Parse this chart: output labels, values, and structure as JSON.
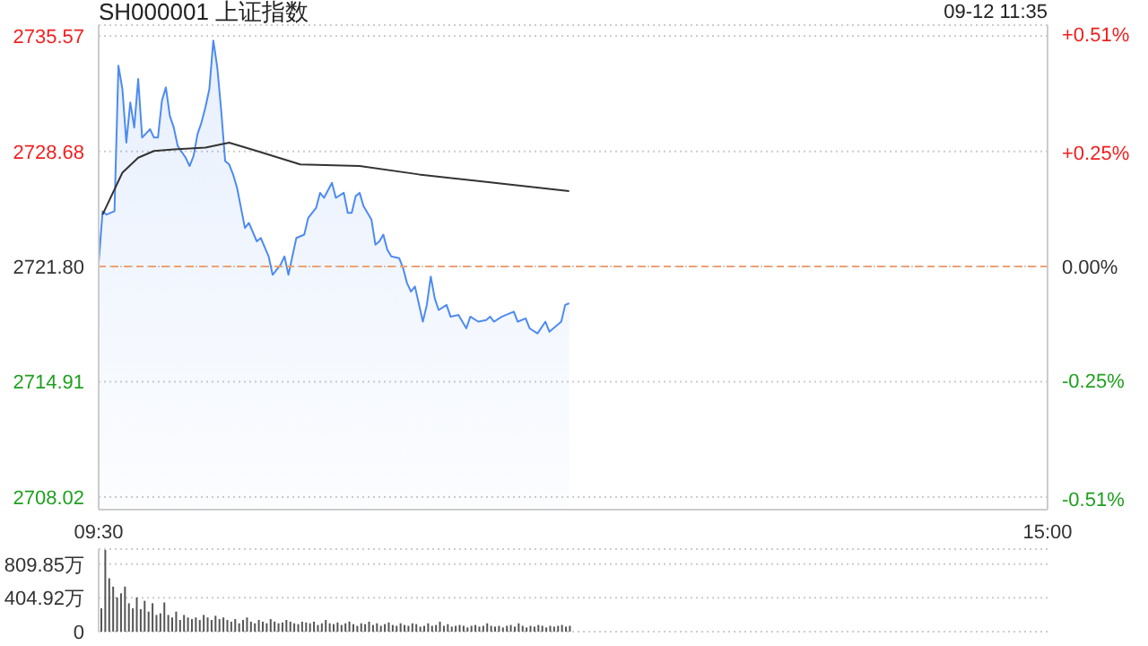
{
  "chart_data": [
    {
      "type": "line",
      "title": "SH000001 上证指数",
      "annotations": [
        "09-12 11:35"
      ],
      "categories": [
        "09:30",
        null,
        null,
        null,
        null,
        null,
        null,
        null,
        null,
        null,
        null,
        null,
        null,
        null,
        null,
        null,
        null,
        null,
        null,
        null,
        null,
        null,
        null,
        null,
        null,
        null,
        null,
        null,
        null,
        null,
        null,
        null,
        null,
        null,
        null,
        null,
        null,
        null,
        null,
        null,
        null,
        null,
        null,
        null,
        null,
        null,
        null,
        null,
        null,
        null,
        null,
        null,
        null,
        null,
        null,
        null,
        null,
        null,
        null,
        null,
        null,
        null,
        null,
        null,
        null,
        null,
        null,
        null,
        null,
        null,
        null,
        null,
        null,
        null,
        null,
        null,
        null,
        null,
        null,
        null,
        null,
        null,
        null,
        null,
        null,
        null,
        null,
        null,
        null,
        null,
        null,
        null,
        null,
        null,
        null,
        null,
        null,
        null,
        null,
        null,
        null,
        null,
        null,
        null,
        null,
        null,
        null,
        null,
        null,
        null,
        null,
        null,
        null,
        null,
        null,
        null,
        null,
        null,
        null,
        null,
        null,
        null,
        null,
        null,
        null,
        null,
        null,
        null,
        null,
        null,
        null,
        null,
        null,
        null,
        null,
        null,
        null,
        null,
        null,
        null,
        null,
        null,
        null,
        null,
        null,
        null,
        null,
        null,
        null,
        null,
        null,
        null,
        null,
        null,
        null,
        null,
        null,
        null,
        null,
        null,
        null,
        null,
        null,
        null,
        null,
        null,
        null,
        null,
        null,
        null,
        null,
        null,
        null,
        null,
        null,
        null,
        null,
        null,
        null,
        null,
        null,
        null,
        null,
        null,
        null,
        null,
        null,
        null,
        null,
        null,
        null,
        null,
        null,
        null,
        null,
        null,
        null,
        null,
        null,
        null,
        null,
        null,
        null,
        null,
        null,
        null,
        null,
        null,
        null,
        null,
        null,
        null,
        null,
        null,
        null,
        null,
        null,
        null,
        null,
        null,
        null,
        null,
        null,
        null,
        null,
        null,
        null,
        null,
        null,
        null,
        null,
        null,
        null,
        null,
        null,
        null,
        null,
        null,
        null,
        null,
        "15:00"
      ],
      "ylim": [
        2707.27,
        2736.22
      ],
      "yticks": [
        2708.02,
        2714.91,
        {
          "value": 2721.8,
          "label": "2721.80"
        },
        2728.68,
        2735.57
      ],
      "y2lim": [
        -0.534,
        0.53
      ],
      "y2ticks": [
        {
          "value": -0.51,
          "label": "-0.51%"
        },
        {
          "value": -0.25,
          "label": "-0.25%"
        },
        {
          "value": 0,
          "label": "0.00%"
        },
        {
          "value": 0.25,
          "label": "+0.25%"
        },
        {
          "value": 0.51,
          "label": "+0.51%"
        }
      ],
      "grid": "y",
      "ref_lines": [
        {
          "axis": "y",
          "value": 2721.8,
          "color": "#f0a070",
          "line_style": "dashed"
        }
      ],
      "series": [
        {
          "type": "area",
          "color": "#4d8bf0",
          "values": [
            2722.0,
            2725.1,
            2724.9,
            null,
            2725.1,
            2733.8,
            2732.4,
            2729.2,
            2731.6,
            2730.1,
            2733.0,
            2729.5,
            null,
            2730.0,
            2729.5,
            2729.5,
            2731.7,
            2732.5,
            2730.8,
            2730.1,
            2729.0,
            null,
            2728.3,
            2727.8,
            2728.4,
            2729.7,
            2730.4,
            2731.3,
            2732.4,
            2735.3,
            2733.7,
            2731.1,
            2728.1,
            2727.9,
            2727.3,
            2726.5,
            null,
            2724.1,
            2724.4,
            null,
            2723.3,
            2723.5,
            null,
            2722.4,
            2721.3,
            null,
            2721.9,
            2722.4,
            2721.3,
            null,
            2723.5,
            null,
            2723.7,
            2724.7,
            null,
            2725.3,
            2726.2,
            2725.9,
            null,
            2726.8,
            2725.9,
            null,
            2726.2,
            2725.0,
            2725.0,
            2726.0,
            2726.2,
            2725.4,
            null,
            2724.6,
            2723.1,
            2723.3,
            2723.7,
            2722.8,
            2722.4,
            null,
            2722.3,
            2721.7,
            2720.8,
            2720.3,
            2720.6,
            null,
            2718.5,
            2719.5,
            2721.2,
            2719.9,
            2719.2,
            null,
            2719.5,
            2718.8,
            null,
            2718.9,
            null,
            2718.1,
            2718.8,
            null,
            2718.5,
            null,
            2718.6,
            2718.8,
            2718.5,
            null,
            2718.8,
            null,
            null,
            2719.1,
            2718.5,
            null,
            2718.7,
            2718.1,
            null,
            2717.8,
            null,
            2718.5,
            2717.9,
            null,
            null,
            2718.5,
            2719.5,
            2719.6,
            null,
            null,
            null,
            null,
            null,
            null,
            null,
            null,
            null,
            null,
            null,
            null,
            null,
            null,
            null,
            null,
            null,
            null,
            null,
            null,
            null,
            null,
            null,
            null,
            null,
            null,
            null,
            null,
            null,
            null,
            null,
            null,
            null,
            null,
            null,
            null,
            null,
            null,
            null,
            null,
            null,
            null,
            null,
            null,
            null,
            null,
            null,
            null,
            null,
            null,
            null,
            null,
            null,
            null,
            null,
            null,
            null,
            null,
            null,
            null,
            null,
            null,
            null,
            null,
            null,
            null,
            null,
            null,
            null,
            null,
            null,
            null,
            null,
            null,
            null,
            null,
            null,
            null,
            null,
            null,
            null,
            null,
            null,
            null,
            null,
            null,
            null,
            null,
            null,
            null,
            null,
            null,
            null,
            null,
            null,
            null,
            null,
            null,
            null,
            null,
            null,
            null,
            null,
            null,
            null,
            null,
            null,
            null,
            null,
            null,
            null,
            null,
            null,
            null,
            null,
            null,
            null,
            null,
            null,
            null,
            null
          ]
        },
        {
          "color": "#333333",
          "values": [
            null,
            2724.9,
            null,
            null,
            null,
            null,
            2727.4,
            null,
            null,
            null,
            2728.3,
            null,
            null,
            null,
            2728.7,
            null,
            null,
            null,
            null,
            2728.8,
            null,
            null,
            null,
            null,
            null,
            null,
            null,
            2728.9,
            null,
            null,
            null,
            null,
            null,
            2729.2,
            null,
            null,
            null,
            null,
            null,
            null,
            2728.7,
            null,
            null,
            null,
            null,
            null,
            null,
            null,
            null,
            null,
            null,
            2727.9,
            null,
            null,
            null,
            null,
            null,
            null,
            null,
            null,
            null,
            null,
            null,
            null,
            null,
            null,
            2727.8,
            null,
            null,
            null,
            null,
            null,
            null,
            null,
            null,
            null,
            null,
            null,
            null,
            null,
            null,
            2727.3,
            null,
            null,
            null,
            null,
            null,
            null,
            null,
            null,
            null,
            null,
            null,
            null,
            null,
            null,
            2726.9,
            null,
            null,
            null,
            null,
            null,
            null,
            null,
            null,
            null,
            null,
            null,
            null,
            null,
            null,
            null,
            null,
            null,
            null,
            null,
            null,
            null,
            null,
            2726.3,
            null,
            null,
            null,
            null,
            null,
            null,
            null,
            null,
            null,
            null,
            null,
            null,
            null,
            null,
            null,
            null,
            null,
            null,
            null,
            null,
            null,
            null,
            null,
            null,
            null,
            null,
            null,
            null,
            null,
            null,
            null,
            null,
            null,
            null,
            null,
            null,
            null,
            null,
            null,
            null,
            null,
            null,
            null,
            null,
            null,
            null,
            null,
            null,
            null,
            null,
            null,
            null,
            null,
            null,
            null,
            null,
            null,
            null,
            null,
            null,
            null,
            null,
            null,
            null,
            null,
            null,
            null,
            null,
            null,
            null,
            null,
            null,
            null,
            null,
            null,
            null,
            null,
            null,
            null,
            null,
            null,
            null,
            null,
            null,
            null,
            null,
            null,
            null,
            null,
            null,
            null,
            null,
            null,
            null,
            null,
            null,
            null,
            null,
            null,
            null,
            null,
            null,
            null,
            null,
            null,
            null,
            null,
            null,
            null,
            null,
            null,
            null,
            null,
            null,
            null,
            null,
            null,
            null,
            null,
            null,
            null
          ]
        }
      ]
    },
    {
      "type": "bar",
      "tick_labels": "y",
      "grid": "y",
      "ylim": [
        0,
        990
      ],
      "yticks": [
        0,
        {
          "value": 404.92,
          "label": "404.92万"
        },
        {
          "value": 809.85,
          "label": "809.85万"
        }
      ],
      "categories": [
        null,
        null,
        null,
        null,
        null,
        null,
        null,
        null,
        null,
        null,
        null,
        null,
        null,
        null,
        null,
        null,
        null,
        null,
        null,
        null,
        null,
        null,
        null,
        null,
        null,
        null,
        null,
        null,
        null,
        null,
        null,
        null,
        null,
        null,
        null,
        null,
        null,
        null,
        null,
        null,
        null,
        null,
        null,
        null,
        null,
        null,
        null,
        null,
        null,
        null,
        null,
        null,
        null,
        null,
        null,
        null,
        null,
        null,
        null,
        null,
        null,
        null,
        null,
        null,
        null,
        null,
        null,
        null,
        null,
        null,
        null,
        null,
        null,
        null,
        null,
        null,
        null,
        null,
        null,
        null,
        null,
        null,
        null,
        null,
        null,
        null,
        null,
        null,
        null,
        null,
        null,
        null,
        null,
        null,
        null,
        null,
        null,
        null,
        null,
        null,
        null,
        null,
        null,
        null,
        null,
        null,
        null,
        null,
        null,
        null,
        null,
        null,
        null,
        null,
        null,
        null,
        null,
        null,
        null,
        null,
        null,
        null,
        null,
        null,
        null,
        null,
        null,
        null,
        null,
        null,
        null,
        null,
        null,
        null,
        null,
        null,
        null,
        null,
        null,
        null,
        null,
        null,
        null,
        null,
        null,
        null,
        null,
        null,
        null,
        null,
        null,
        null,
        null,
        null,
        null,
        null,
        null,
        null,
        null,
        null,
        null,
        null,
        null,
        null,
        null,
        null,
        null,
        null,
        null,
        null,
        null,
        null,
        null,
        null,
        null,
        null,
        null,
        null,
        null,
        null,
        null,
        null,
        null,
        null,
        null,
        null,
        null,
        null,
        null,
        null,
        null,
        null,
        null,
        null,
        null,
        null,
        null,
        null,
        null,
        null,
        null,
        null,
        null,
        null,
        null,
        null,
        null,
        null,
        null,
        null,
        null,
        null,
        null,
        null,
        null,
        null,
        null,
        null,
        null,
        null,
        null,
        null,
        null,
        null,
        null,
        null,
        null,
        null,
        null,
        null,
        null,
        null,
        null,
        null,
        null,
        null,
        null,
        null,
        null,
        null,
        null
      ],
      "series": [
        {
          "color": "#555555",
          "values": [
            280,
            980,
            640,
            540,
            410,
            460,
            540,
            340,
            280,
            410,
            270,
            370,
            240,
            340,
            200,
            220,
            350,
            200,
            170,
            240,
            140,
            200,
            170,
            150,
            170,
            140,
            200,
            170,
            140,
            190,
            150,
            170,
            140,
            120,
            150,
            100,
            140,
            170,
            120,
            100,
            140,
            120,
            100,
            150,
            120,
            100,
            110,
            140,
            120,
            100,
            90,
            120,
            110,
            100,
            120,
            80,
            100,
            140,
            100,
            90,
            110,
            80,
            100,
            120,
            90,
            70,
            100,
            90,
            120,
            80,
            100,
            70,
            90,
            110,
            80,
            70,
            100,
            80,
            70,
            100,
            90,
            60,
            70,
            100,
            70,
            80,
            120,
            70,
            90,
            60,
            70,
            80,
            70,
            50,
            70,
            80,
            60,
            70,
            100,
            70,
            60,
            70,
            50,
            70,
            80,
            60,
            100,
            70,
            50,
            70,
            60,
            80,
            70,
            50,
            70,
            60,
            70,
            80,
            60,
            70,
            null,
            null,
            null,
            null,
            null,
            null,
            null,
            null,
            null,
            null,
            null,
            null,
            null,
            null,
            null,
            null,
            null,
            null,
            null,
            null,
            null,
            null,
            null,
            null,
            null,
            null,
            null,
            null,
            null,
            null,
            null,
            null,
            null,
            null,
            null,
            null,
            null,
            null,
            null,
            null,
            null,
            null,
            null,
            null,
            null,
            null,
            null,
            null,
            null,
            null,
            null,
            null,
            null,
            null,
            null,
            null,
            null,
            null,
            null,
            null,
            null,
            null,
            null,
            null,
            null,
            null,
            null,
            null,
            null,
            null,
            null,
            null,
            null,
            null,
            null,
            null,
            null,
            null,
            null,
            null,
            null,
            null,
            null,
            null,
            null,
            null,
            null,
            null,
            null,
            null,
            null,
            null,
            null,
            null,
            null,
            null,
            null,
            null,
            null,
            null,
            null,
            null,
            null,
            null,
            null,
            null,
            null,
            null,
            null,
            null,
            null,
            null,
            null,
            null,
            null,
            null,
            null,
            null,
            null,
            null,
            null
          ]
        }
      ]
    }
  ]
}
